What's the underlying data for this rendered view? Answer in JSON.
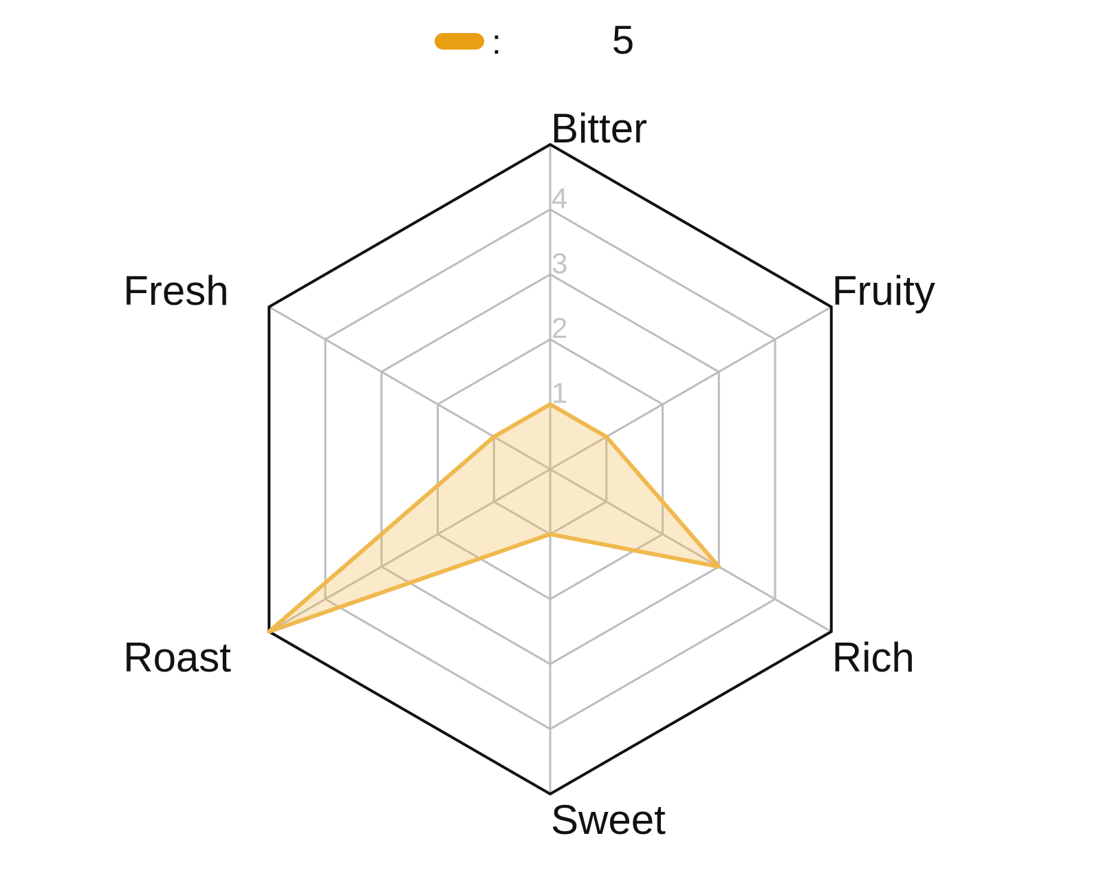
{
  "chart_data": {
    "type": "radar",
    "categories": [
      "Bitter",
      "Fruity",
      "Rich",
      "Sweet",
      "Roast",
      "Fresh"
    ],
    "series": [
      {
        "name": ":",
        "color": "#f0b94f",
        "values": [
          1,
          1,
          3,
          1,
          5,
          1
        ]
      }
    ],
    "legend_text": "5",
    "legend_color": "#e89f14",
    "rlim": [
      0,
      5
    ],
    "rticks": [
      1,
      2,
      3,
      4
    ],
    "grid": true
  }
}
